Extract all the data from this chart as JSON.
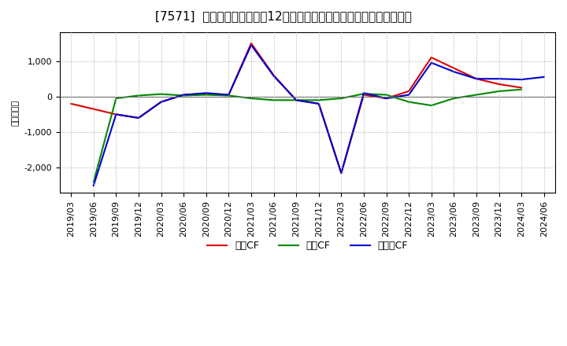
{
  "title": "[7571]  キャッシュフローの12か月移動合計の対前年同期増減額の推移",
  "ylabel": "（百万円）",
  "x_labels": [
    "2019/03",
    "2019/06",
    "2019/09",
    "2019/12",
    "2020/03",
    "2020/06",
    "2020/09",
    "2020/12",
    "2021/03",
    "2021/06",
    "2021/09",
    "2021/12",
    "2022/03",
    "2022/06",
    "2022/09",
    "2022/12",
    "2023/03",
    "2023/06",
    "2023/09",
    "2023/12",
    "2024/03",
    "2024/06"
  ],
  "operating_cf": [
    -200,
    -350,
    -500,
    -600,
    -150,
    50,
    80,
    50,
    1500,
    600,
    -100,
    -200,
    -2150,
    50,
    -50,
    150,
    1100,
    800,
    500,
    350,
    250,
    null
  ],
  "investing_cf": [
    null,
    -2400,
    -50,
    30,
    70,
    30,
    50,
    30,
    -50,
    -100,
    -100,
    -100,
    -50,
    80,
    50,
    -150,
    -250,
    -50,
    50,
    150,
    200,
    null
  ],
  "free_cf": [
    null,
    -2500,
    -500,
    -600,
    -150,
    50,
    100,
    50,
    1450,
    580,
    -100,
    -200,
    -2150,
    100,
    -50,
    50,
    950,
    700,
    500,
    500,
    480,
    550
  ],
  "color_operating": "#dd0000",
  "color_investing": "#008800",
  "color_free": "#0000cc",
  "background_color": "#ffffff",
  "plot_bg_color": "#ffffff",
  "grid_color": "#aaaaaa",
  "ylim": [
    -2700,
    1800
  ],
  "yticks": [
    -2000,
    -1000,
    0,
    1000
  ],
  "title_fontsize": 11,
  "axis_fontsize": 8,
  "legend_fontsize": 9
}
